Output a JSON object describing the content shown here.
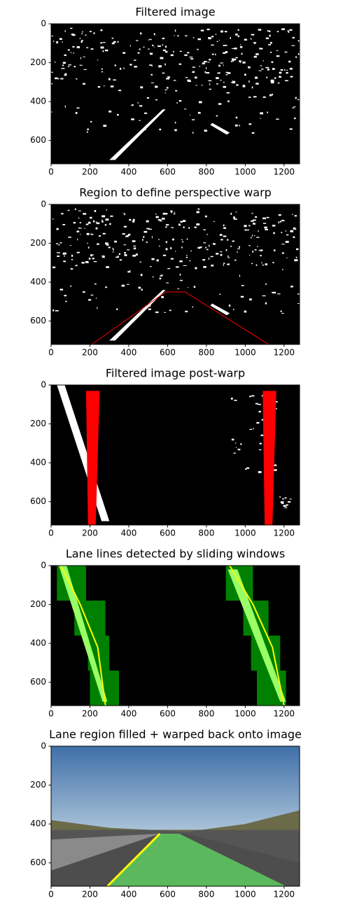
{
  "chart_data": [
    {
      "type": "image",
      "title": "Filtered image",
      "xlim": [
        0,
        1280
      ],
      "ylim": [
        720,
        0
      ],
      "xticks": [
        0,
        200,
        400,
        600,
        800,
        1000,
        1200
      ],
      "yticks": [
        0,
        200,
        400,
        600
      ]
    },
    {
      "type": "image",
      "title": "Region to define perspective warp",
      "xlim": [
        0,
        1280
      ],
      "ylim": [
        720,
        0
      ],
      "xticks": [
        0,
        200,
        400,
        600,
        800,
        1000,
        1200
      ],
      "yticks": [
        0,
        200,
        400,
        600
      ]
    },
    {
      "type": "image",
      "title": "Filtered image post-warp",
      "xlim": [
        0,
        1280
      ],
      "ylim": [
        720,
        0
      ],
      "xticks": [
        0,
        200,
        400,
        600,
        800,
        1000,
        1200
      ],
      "yticks": [
        0,
        200,
        400,
        600
      ]
    },
    {
      "type": "image",
      "title": "Lane lines detected by sliding windows",
      "xlim": [
        0,
        1280
      ],
      "ylim": [
        720,
        0
      ],
      "xticks": [
        0,
        200,
        400,
        600,
        800,
        1000,
        1200
      ],
      "yticks": [
        0,
        200,
        400,
        600
      ]
    },
    {
      "type": "image",
      "title": "Lane region filled + warped back onto image",
      "xlim": [
        0,
        1280
      ],
      "ylim": [
        720,
        0
      ],
      "xticks": [
        0,
        200,
        400,
        600,
        800,
        1000,
        1200
      ],
      "yticks": [
        0,
        200,
        400,
        600
      ]
    }
  ]
}
